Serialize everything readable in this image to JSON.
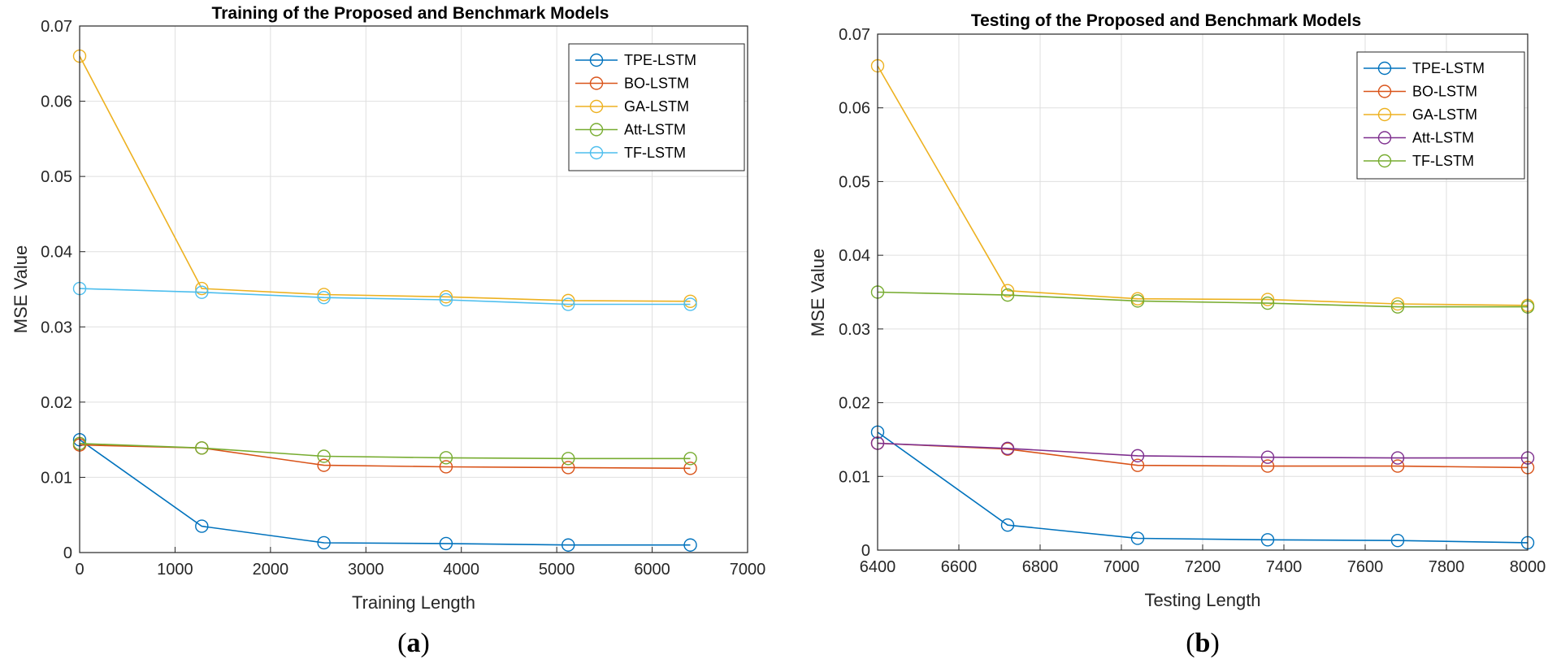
{
  "chart_data": [
    {
      "type": "line",
      "panel": "a",
      "title": "Training of the Proposed and Benchmark Models",
      "xlabel": "Training Length",
      "ylabel": "MSE Value",
      "xlim": [
        0,
        7000
      ],
      "ylim": [
        0,
        0.07
      ],
      "xticks": [
        0,
        1000,
        2000,
        3000,
        4000,
        5000,
        6000,
        7000
      ],
      "yticks": [
        0,
        0.01,
        0.02,
        0.03,
        0.04,
        0.05,
        0.06,
        0.07
      ],
      "xtick_labels": [
        "0",
        "1000",
        "2000",
        "3000",
        "4000",
        "5000",
        "6000",
        "7000"
      ],
      "ytick_labels": [
        "0",
        "0.01",
        "0.02",
        "0.03",
        "0.04",
        "0.05",
        "0.06",
        "0.07"
      ],
      "grid": true,
      "legend_position": "top-right",
      "x": [
        0,
        1280,
        2560,
        3840,
        5120,
        6400
      ],
      "series": [
        {
          "name": "TPE-LSTM",
          "color": "#0072BD",
          "values": [
            0.015,
            0.0035,
            0.0013,
            0.0012,
            0.001,
            0.001
          ]
        },
        {
          "name": "BO-LSTM",
          "color": "#D95319",
          "values": [
            0.0143,
            0.0139,
            0.0116,
            0.0114,
            0.0113,
            0.0112
          ]
        },
        {
          "name": "GA-LSTM",
          "color": "#EDB120",
          "values": [
            0.066,
            0.0351,
            0.0343,
            0.034,
            0.0335,
            0.0334
          ]
        },
        {
          "name": "Att-LSTM",
          "color": "#77AC30",
          "values": [
            0.0145,
            0.0139,
            0.0128,
            0.0126,
            0.0125,
            0.0125
          ]
        },
        {
          "name": "TF-LSTM",
          "color": "#4DBEEE",
          "values": [
            0.0351,
            0.0346,
            0.0339,
            0.0336,
            0.033,
            0.033
          ]
        }
      ],
      "caption_prefix": "(",
      "caption_letter": "a",
      "caption_suffix": ")"
    },
    {
      "type": "line",
      "panel": "b",
      "title": "Testing of the Proposed and Benchmark Models",
      "xlabel": "Testing Length",
      "ylabel": "MSE Value",
      "xlim": [
        6400,
        8000
      ],
      "ylim": [
        0,
        0.07
      ],
      "xticks": [
        6400,
        6600,
        6800,
        7000,
        7200,
        7400,
        7600,
        7800,
        8000
      ],
      "yticks": [
        0,
        0.01,
        0.02,
        0.03,
        0.04,
        0.05,
        0.06,
        0.07
      ],
      "xtick_labels": [
        "6400",
        "6600",
        "6800",
        "7000",
        "7200",
        "7400",
        "7600",
        "7800",
        "8000"
      ],
      "ytick_labels": [
        "0",
        "0.01",
        "0.02",
        "0.03",
        "0.04",
        "0.05",
        "0.06",
        "0.07"
      ],
      "grid": true,
      "legend_position": "top-right",
      "x": [
        6400,
        6720,
        7040,
        7360,
        7680,
        8000
      ],
      "series": [
        {
          "name": "TPE-LSTM",
          "color": "#0072BD",
          "values": [
            0.016,
            0.0034,
            0.0016,
            0.0014,
            0.0013,
            0.001
          ]
        },
        {
          "name": "BO-LSTM",
          "color": "#D95319",
          "values": [
            0.0145,
            0.0137,
            0.0115,
            0.0114,
            0.0114,
            0.0112
          ]
        },
        {
          "name": "GA-LSTM",
          "color": "#EDB120",
          "values": [
            0.0657,
            0.0352,
            0.0341,
            0.034,
            0.0334,
            0.0332
          ]
        },
        {
          "name": "Att-LSTM",
          "color": "#7E2F8E",
          "values": [
            0.0145,
            0.0138,
            0.0128,
            0.0126,
            0.0125,
            0.0125
          ]
        },
        {
          "name": "TF-LSTM",
          "color": "#77AC30",
          "values": [
            0.035,
            0.0346,
            0.0338,
            0.0335,
            0.033,
            0.033
          ]
        }
      ],
      "caption_prefix": "(",
      "caption_letter": "b",
      "caption_suffix": ")"
    }
  ]
}
